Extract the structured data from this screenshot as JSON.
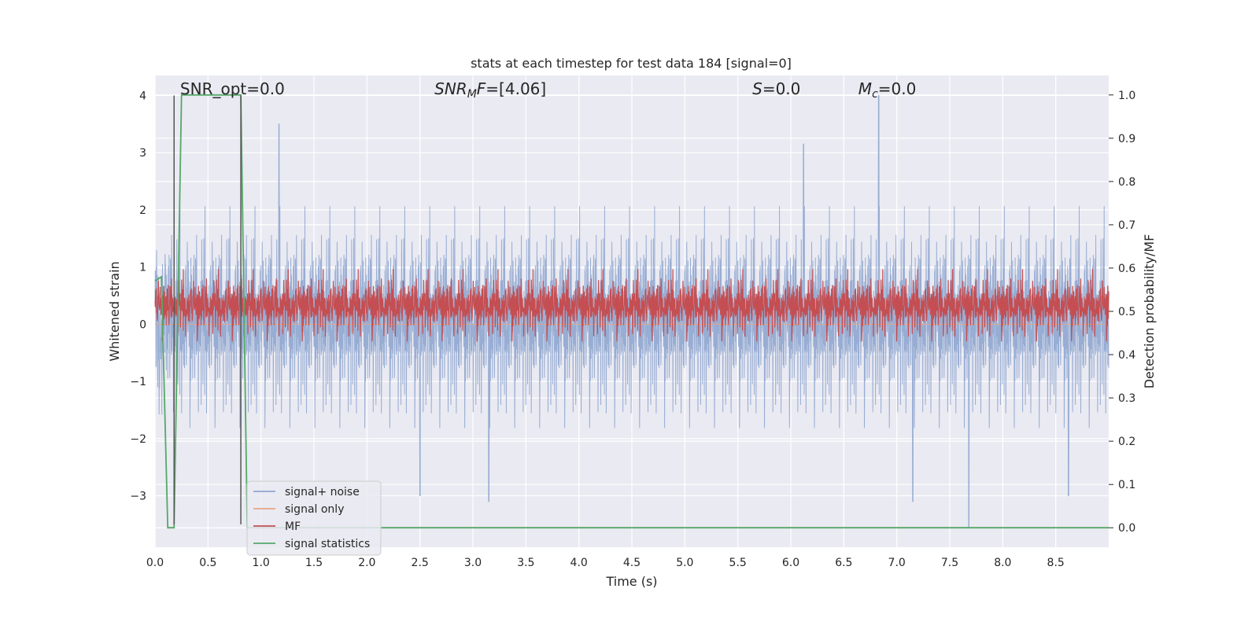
{
  "chart_data": {
    "type": "line",
    "title": "stats at each timestep for test data 184 [signal=0]",
    "xlabel": "Time (s)",
    "ylabel_left": "Whitened strain",
    "ylabel_right": "Detection probability/MF",
    "xlim": [
      0.0,
      9.0
    ],
    "ylim_left": [
      -3.9,
      4.35
    ],
    "ylim_right": [
      -0.045,
      1.045
    ],
    "grid": true,
    "legend_position": "lower-left",
    "x_ticks": [
      "0.0",
      "0.5",
      "1.0",
      "1.5",
      "2.0",
      "2.5",
      "3.0",
      "3.5",
      "4.0",
      "4.5",
      "5.0",
      "5.5",
      "6.0",
      "6.5",
      "7.0",
      "7.5",
      "8.0",
      "8.5"
    ],
    "y_ticks_left": [
      "−3",
      "−2",
      "−1",
      "0",
      "1",
      "2",
      "3",
      "4"
    ],
    "y_ticks_right": [
      "0.0",
      "0.1",
      "0.2",
      "0.3",
      "0.4",
      "0.5",
      "0.6",
      "0.7",
      "0.8",
      "0.9",
      "1.0"
    ],
    "annotations": [
      {
        "text": "SNR_opt=0.0",
        "x": 0.2,
        "y": 4.1
      },
      {
        "text": "SNR_MF=[4.06]",
        "x": 2.6,
        "y": 4.1
      },
      {
        "text": "S=0.0",
        "x": 5.6,
        "y": 4.1
      },
      {
        "text": "M_c=0.0",
        "x": 6.6,
        "y": 4.1
      }
    ],
    "vertical_lines": [
      {
        "x": 0.18,
        "y_from": -3.5,
        "y_to": 4.0
      },
      {
        "x": 0.81,
        "y_from": -3.5,
        "y_to": 4.0
      }
    ],
    "series": [
      {
        "name": "signal+ noise",
        "axis": "left",
        "color": "#8fa6cf",
        "kind": "noise",
        "center": -0.2,
        "amplitude": 1.1,
        "spikes_up": [
          [
            1.17,
            3.5
          ],
          [
            6.12,
            3.15
          ],
          [
            6.83,
            4.0
          ]
        ],
        "spikes_down": [
          [
            2.5,
            -3.0
          ],
          [
            3.15,
            -3.1
          ],
          [
            7.68,
            -3.55
          ],
          [
            7.15,
            -3.1
          ],
          [
            8.62,
            -3.0
          ]
        ]
      },
      {
        "name": "signal only",
        "axis": "left",
        "color": "#e8a584",
        "kind": "flat",
        "value": 0.0
      },
      {
        "name": "MF",
        "axis": "right",
        "color": "#c44e52",
        "kind": "noise",
        "center": 0.5,
        "amplitude": 0.045,
        "max": 0.6
      },
      {
        "name": "signal statistics",
        "axis": "right",
        "color": "#55a868",
        "kind": "polyline",
        "x": [
          0.0,
          0.06,
          0.12,
          0.18,
          0.25,
          0.81,
          0.87,
          9.0
        ],
        "y": [
          0.57,
          0.58,
          0.0,
          0.0,
          1.0,
          1.0,
          0.0,
          0.0
        ]
      }
    ]
  }
}
